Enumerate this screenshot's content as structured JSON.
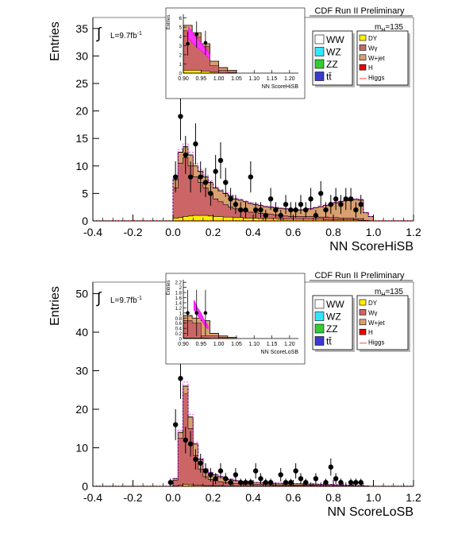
{
  "chart_data": [
    {
      "type": "bar",
      "title": "CDF Run II Preliminary",
      "ylabel": "Entries",
      "xlabel": "NN ScoreHiSB",
      "luminosity": "L=9.7fb",
      "luminosity_sup": "-1",
      "mass_label": "m",
      "mass_sub": "H",
      "mass_value": "=135",
      "xlim": [
        -0.4,
        1.2
      ],
      "ylim": [
        0,
        37
      ],
      "x_ticks": [
        -0.4,
        -0.2,
        0.0,
        0.2,
        0.4,
        0.6,
        0.8,
        1.0,
        1.2
      ],
      "x_tick_labels": [
        "-0.4",
        "-0.2",
        "0.0",
        "0.2",
        "0.4",
        "0.6",
        "0.8",
        "1.0",
        "1.2"
      ],
      "y_ticks": [
        0,
        5,
        10,
        15,
        20,
        25,
        30,
        35
      ],
      "y_tick_labels": [
        "0",
        "5",
        "10",
        "15",
        "20",
        "25",
        "30",
        "35"
      ],
      "bin_width": 0.025,
      "bins_start": 0.0,
      "legend_left": [
        {
          "label": "WW",
          "color": "#ffffff"
        },
        {
          "label": "WZ",
          "color": "#33e6ff"
        },
        {
          "label": "ZZ",
          "color": "#33cc33"
        },
        {
          "label": "tt̄",
          "color": "#3a3ad1"
        }
      ],
      "legend_right": [
        {
          "label": "DY",
          "color": "#ffee00"
        },
        {
          "label": "Wγ",
          "color": "#cc6666"
        },
        {
          "label": "W+jet",
          "color": "#d9a070"
        },
        {
          "label": "H",
          "color": "#ee0000"
        },
        {
          "label": "Higgs",
          "color": "#ff6666"
        }
      ],
      "background_total": [
        7.5,
        12.5,
        13.5,
        12.0,
        10.0,
        9.0,
        8.0,
        7.0,
        6.0,
        5.5,
        5.0,
        4.5,
        4.0,
        3.8,
        3.5,
        3.2,
        3.0,
        2.8,
        2.6,
        2.5,
        2.4,
        2.3,
        2.2,
        2.1,
        2.0,
        2.0,
        2.1,
        2.2,
        2.4,
        2.6,
        2.8,
        3.0,
        3.3,
        3.5,
        3.7,
        3.8,
        3.9,
        3.8,
        1.5,
        0.8
      ],
      "wgamma": [
        6.0,
        10.5,
        11.5,
        10.0,
        8.0,
        7.0,
        6.0,
        5.0,
        4.0,
        3.5,
        3.0,
        2.5,
        2.2,
        2.0,
        1.8,
        1.6,
        1.5,
        1.4,
        1.3,
        1.2,
        1.1,
        1.0,
        0.9,
        0.8,
        0.8,
        0.8,
        0.8,
        0.8,
        0.8,
        0.7,
        0.7,
        0.6,
        0.6,
        0.5,
        0.5,
        0.5,
        0.4,
        0.4,
        0.1,
        0.0
      ],
      "dy": [
        0.5,
        0.6,
        0.8,
        0.9,
        1.0,
        1.0,
        1.0,
        0.9,
        0.8,
        0.8,
        0.7,
        0.7,
        0.6,
        0.6,
        0.5,
        0.5,
        0.5,
        0.4,
        0.4,
        0.4,
        0.4,
        0.3,
        0.3,
        0.3,
        0.3,
        0.3,
        0.3,
        0.3,
        0.3,
        0.3,
        0.2,
        0.2,
        0.2,
        0.2,
        0.2,
        0.2,
        0.2,
        0.1,
        0.0,
        0.0
      ],
      "data_x": [
        0.0125,
        0.0375,
        0.0625,
        0.0875,
        0.1125,
        0.1375,
        0.1625,
        0.1875,
        0.2125,
        0.2375,
        0.2625,
        0.2875,
        0.3125,
        0.3375,
        0.3625,
        0.3875,
        0.4125,
        0.4375,
        0.4625,
        0.4875,
        0.5125,
        0.5375,
        0.5625,
        0.5875,
        0.6125,
        0.6375,
        0.6625,
        0.6875,
        0.7125,
        0.7375,
        0.7625,
        0.7875,
        0.8125,
        0.8375,
        0.8625,
        0.8875,
        0.9125,
        0.9375
      ],
      "data_y": [
        8,
        19,
        12,
        8,
        14,
        8,
        7,
        5,
        9,
        11,
        7,
        4,
        3,
        2,
        2,
        8,
        2,
        2,
        1,
        4,
        2,
        1,
        3,
        2,
        2,
        3,
        2,
        4,
        1,
        5,
        2,
        3,
        4,
        3,
        4,
        4,
        2,
        3
      ],
      "inset": {
        "ylabel": "Entries",
        "xlabel": "NN ScoreHiSB",
        "xlim": [
          0.9,
          1.225
        ],
        "ylim": [
          0,
          6.4
        ],
        "x_ticks": [
          0.9,
          0.95,
          1.0,
          1.05,
          1.1,
          1.15,
          1.2
        ],
        "x_tick_labels": [
          "0.90",
          "0.95",
          "1.00",
          "1.05",
          "1.10",
          "1.15",
          "1.20"
        ],
        "y_ticks": [
          0,
          1,
          2,
          3,
          4,
          5,
          6
        ],
        "y_tick_labels": [
          "0",
          "1",
          "2",
          "3",
          "4",
          "5",
          "6"
        ],
        "bin_edges": [
          0.9,
          0.925,
          0.95,
          0.975,
          1.0,
          1.025,
          1.05
        ],
        "background_total": [
          5.2,
          4.4,
          3.2,
          1.3,
          0.6,
          0.3
        ],
        "wgamma": [
          4.6,
          3.9,
          2.9,
          0.8,
          0.3,
          0.1
        ],
        "dy": [
          0.3,
          0.3,
          0.2,
          0.1,
          0.0,
          0.0
        ],
        "data_x": [
          0.9125,
          0.9375,
          0.9625
        ],
        "data_y": [
          3.2,
          4.2,
          3.3
        ],
        "higgs_x": [
          0.915,
          0.93,
          0.945,
          0.96,
          0.975
        ],
        "higgs_y": [
          5.0,
          4.2,
          3.5,
          2.8,
          2.0
        ]
      }
    },
    {
      "type": "bar",
      "title": "CDF Run II Preliminary",
      "ylabel": "Entries",
      "xlabel": "NN ScoreLoSB",
      "luminosity": "L=9.7fb",
      "luminosity_sup": "-1",
      "mass_label": "m",
      "mass_sub": "H",
      "mass_value": "=135",
      "xlim": [
        -0.4,
        1.2
      ],
      "ylim": [
        0,
        53
      ],
      "x_ticks": [
        -0.4,
        -0.2,
        0.0,
        0.2,
        0.4,
        0.6,
        0.8,
        1.0,
        1.2
      ],
      "x_tick_labels": [
        "-0.4",
        "-0.2",
        "0.0",
        "0.2",
        "0.4",
        "0.6",
        "0.8",
        "1.0",
        "1.2"
      ],
      "y_ticks": [
        0,
        10,
        20,
        30,
        40,
        50
      ],
      "y_tick_labels": [
        "0",
        "10",
        "20",
        "30",
        "40",
        "50"
      ],
      "bin_width": 0.025,
      "bins_start": 0.0,
      "legend_left": [
        {
          "label": "WW",
          "color": "#ffffff"
        },
        {
          "label": "WZ",
          "color": "#33e6ff"
        },
        {
          "label": "ZZ",
          "color": "#33cc33"
        },
        {
          "label": "tt̄",
          "color": "#3a3ad1"
        }
      ],
      "legend_right": [
        {
          "label": "DY",
          "color": "#ffee00"
        },
        {
          "label": "Wγ",
          "color": "#cc6666"
        },
        {
          "label": "W+jet",
          "color": "#d9a070"
        },
        {
          "label": "H",
          "color": "#ee0000"
        },
        {
          "label": "Higgs",
          "color": "#ff6666"
        }
      ],
      "background_total": [
        2.0,
        14.0,
        26.0,
        18.0,
        11.0,
        7.0,
        4.5,
        3.5,
        3.0,
        2.5,
        2.0,
        1.8,
        1.5,
        1.3,
        1.2,
        1.1,
        1.0,
        1.0,
        0.9,
        0.9,
        0.8,
        0.8,
        0.8,
        0.7,
        0.7,
        0.7,
        0.6,
        0.6,
        0.6,
        0.5,
        0.5,
        0.5,
        0.4,
        0.4,
        0.3,
        0.3,
        0.2,
        0.2,
        0.1,
        0.0
      ],
      "wgamma": [
        1.6,
        12.5,
        24.0,
        15.0,
        8.0,
        4.5,
        2.5,
        1.8,
        1.5,
        1.2,
        1.0,
        0.9,
        0.8,
        0.7,
        0.6,
        0.6,
        0.5,
        0.5,
        0.5,
        0.4,
        0.4,
        0.4,
        0.4,
        0.3,
        0.3,
        0.3,
        0.3,
        0.3,
        0.3,
        0.2,
        0.2,
        0.2,
        0.2,
        0.2,
        0.1,
        0.1,
        0.1,
        0.1,
        0.0,
        0.0
      ],
      "dy": [
        0.1,
        0.3,
        0.5,
        0.4,
        0.3,
        0.3,
        0.2,
        0.2,
        0.2,
        0.2,
        0.1,
        0.1,
        0.1,
        0.1,
        0.1,
        0.1,
        0.1,
        0.1,
        0.1,
        0.1,
        0.1,
        0.1,
        0.1,
        0.1,
        0.1,
        0.1,
        0.1,
        0.1,
        0.1,
        0.1,
        0.1,
        0.1,
        0.0,
        0.0,
        0.0,
        0.0,
        0.0,
        0.0,
        0.0,
        0.0
      ],
      "data_x": [
        -0.0125,
        0.0125,
        0.0375,
        0.0625,
        0.0875,
        0.1125,
        0.1375,
        0.1625,
        0.1875,
        0.2125,
        0.2375,
        0.2625,
        0.2875,
        0.3125,
        0.3375,
        0.3625,
        0.3875,
        0.4125,
        0.4375,
        0.4625,
        0.4875,
        0.5125,
        0.5375,
        0.5625,
        0.5875,
        0.6125,
        0.6375,
        0.6625,
        0.6875,
        0.7125,
        0.7375,
        0.7625,
        0.7875,
        0.8125,
        0.8375,
        0.8625,
        0.8875,
        0.9125,
        0.9375
      ],
      "data_y": [
        1,
        16,
        28,
        12,
        11,
        7,
        6,
        4,
        3,
        2,
        4,
        2,
        1,
        3,
        1,
        1,
        1,
        4,
        2,
        1,
        1,
        0,
        3,
        1,
        1,
        4,
        2,
        1,
        0,
        2,
        0,
        1,
        5,
        2,
        1,
        0,
        1,
        1,
        1
      ],
      "inset": {
        "ylabel": "Entries",
        "xlabel": "NN ScoreLoSB",
        "xlim": [
          0.9,
          1.225
        ],
        "ylim": [
          0,
          2.3
        ],
        "x_ticks": [
          0.9,
          0.95,
          1.0,
          1.05,
          1.1,
          1.15,
          1.2
        ],
        "x_tick_labels": [
          "0.90",
          "0.95",
          "1.00",
          "1.05",
          "1.10",
          "1.15",
          "1.20"
        ],
        "y_ticks": [
          0,
          0.2,
          0.4,
          0.6,
          0.8,
          1.0,
          1.2,
          1.4,
          1.6,
          1.8,
          2.0,
          2.2
        ],
        "y_tick_labels": [
          "0",
          "0.2",
          "0.4",
          "0.6",
          "0.8",
          "1",
          "1.2",
          "1.4",
          "1.6",
          "1.8",
          "2",
          "2.2"
        ],
        "bin_edges": [
          0.9,
          0.925,
          0.95,
          0.975,
          1.0,
          1.025,
          1.05
        ],
        "background_total": [
          0.9,
          0.8,
          0.7,
          0.2,
          0.1,
          0.05
        ],
        "wgamma": [
          0.7,
          0.6,
          0.1,
          0.1,
          0.05,
          0.0
        ],
        "wjet": [
          0.15,
          0.15,
          0.55,
          0.05,
          0.0,
          0.0
        ],
        "dy": [
          0.02,
          0.02,
          0.02,
          0.0,
          0.0,
          0.0
        ],
        "data_x": [
          0.9125,
          0.9375,
          0.9625
        ],
        "data_y": [
          1.0,
          1.0,
          1.0
        ],
        "higgs_x": [
          0.93,
          0.94,
          0.95,
          0.96,
          0.97
        ],
        "higgs_y": [
          1.5,
          1.2,
          1.0,
          0.7,
          0.5
        ]
      }
    }
  ]
}
